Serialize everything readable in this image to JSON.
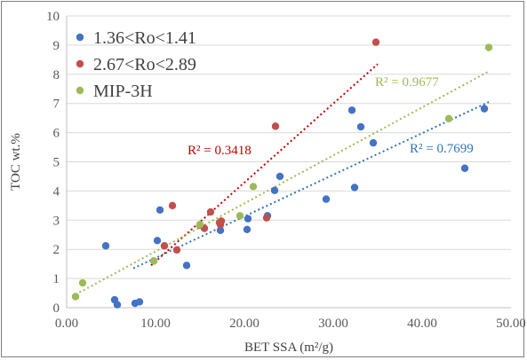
{
  "chart_data": {
    "type": "scatter",
    "title": "",
    "xlabel": "BET SSA (m²/g)",
    "ylabel": "TOC wt.%",
    "xlim": [
      0,
      50
    ],
    "ylim": [
      0,
      10
    ],
    "x_ticks": [
      "0.00",
      "10.00",
      "20.00",
      "30.00",
      "40.00",
      "50.00"
    ],
    "y_ticks": [
      "0",
      "1",
      "2",
      "3",
      "4",
      "5",
      "6",
      "7",
      "8",
      "9",
      "10"
    ],
    "grid": "horizontal",
    "legend_position": "top-left",
    "series": [
      {
        "name": "1.36<Ro<1.41",
        "color": "#4472c4",
        "trend_color": "#2e75b6",
        "r2_label": "R² = 0.7699",
        "trend": [
          [
            7.5,
            1.35
          ],
          [
            47.5,
            7.05
          ]
        ],
        "points": [
          [
            4.4,
            2.12
          ],
          [
            5.4,
            0.27
          ],
          [
            5.7,
            0.1
          ],
          [
            7.7,
            0.15
          ],
          [
            8.2,
            0.2
          ],
          [
            10.2,
            2.3
          ],
          [
            10.5,
            3.35
          ],
          [
            13.5,
            1.45
          ],
          [
            17.3,
            2.65
          ],
          [
            20.3,
            2.68
          ],
          [
            20.4,
            3.05
          ],
          [
            22.6,
            3.15
          ],
          [
            23.4,
            4.02
          ],
          [
            24.0,
            4.5
          ],
          [
            29.2,
            3.72
          ],
          [
            32.1,
            6.77
          ],
          [
            32.4,
            4.12
          ],
          [
            33.1,
            6.2
          ],
          [
            34.5,
            5.65
          ],
          [
            44.8,
            4.78
          ],
          [
            47.0,
            6.82
          ]
        ]
      },
      {
        "name": "2.67<Ro<2.89",
        "color": "#c0504d",
        "trend_color": "#c00000",
        "r2_label": "R² = 0.3418",
        "trend": [
          [
            9.5,
            1.45
          ],
          [
            35.0,
            8.35
          ]
        ],
        "points": [
          [
            9.8,
            1.6
          ],
          [
            11.0,
            2.12
          ],
          [
            11.9,
            3.5
          ],
          [
            12.4,
            1.98
          ],
          [
            15.0,
            2.83
          ],
          [
            15.5,
            2.72
          ],
          [
            16.2,
            3.28
          ],
          [
            17.2,
            2.92
          ],
          [
            17.3,
            2.85
          ],
          [
            17.4,
            2.97
          ],
          [
            22.5,
            3.08
          ],
          [
            23.5,
            6.22
          ],
          [
            34.8,
            9.1
          ]
        ]
      },
      {
        "name": "MIP-3H",
        "color": "#9bbb59",
        "trend_color": "#9bbb59",
        "r2_label": "R² = 0.9677",
        "trend": [
          [
            1.0,
            0.45
          ],
          [
            47.5,
            8.1
          ]
        ],
        "points": [
          [
            1.0,
            0.38
          ],
          [
            1.8,
            0.85
          ],
          [
            9.8,
            1.6
          ],
          [
            15.0,
            2.85
          ],
          [
            19.5,
            3.15
          ],
          [
            21.0,
            4.15
          ],
          [
            43.0,
            6.48
          ],
          [
            47.5,
            8.92
          ]
        ]
      }
    ]
  }
}
